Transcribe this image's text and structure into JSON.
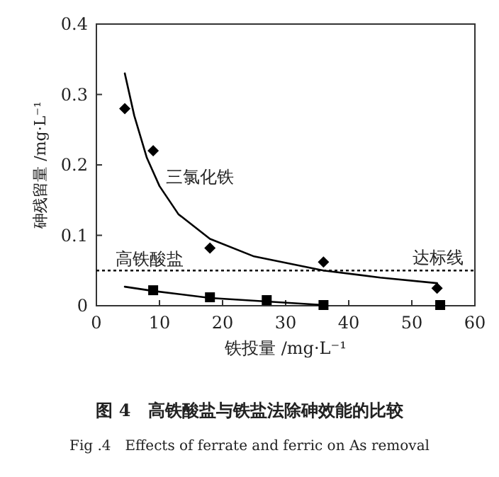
{
  "chart_data": {
    "type": "scatter",
    "title": "图 4　高铁酸盐与铁盐法除砷效能的比较",
    "subtitle": "Fig .4　Effects of ferrate and ferric on As removal",
    "xlabel": "铁投量 /mg·L⁻¹",
    "ylabel": "砷残留量 /mg·L⁻¹",
    "xlim": [
      0,
      60
    ],
    "xticks": [
      0,
      10,
      20,
      30,
      40,
      50,
      60
    ],
    "ylim": [
      0,
      0.4
    ],
    "yticks": [
      0,
      0.1,
      0.2,
      0.3,
      0.4
    ],
    "grid": false,
    "line_style": "solid",
    "series": [
      {
        "marker": "diamond",
        "color": "#000000",
        "x": [
          4.5,
          9,
          18,
          36,
          54
        ],
        "values": [
          0.28,
          0.22,
          0.082,
          0.062,
          0.025
        ]
      },
      {
        "type": "line",
        "marker": "none",
        "color": "#000000",
        "x": [
          4.5,
          6,
          8,
          10,
          13,
          18,
          25,
          36,
          45,
          54
        ],
        "values": [
          0.33,
          0.27,
          0.21,
          0.17,
          0.13,
          0.095,
          0.07,
          0.05,
          0.04,
          0.032
        ]
      },
      {
        "marker": "square",
        "color": "#000000",
        "x": [
          9,
          18,
          27,
          36,
          54.5
        ],
        "values": [
          0.022,
          0.012,
          0.008,
          0.001,
          0.001
        ]
      },
      {
        "type": "line",
        "marker": "none",
        "color": "#000000",
        "x": [
          4.5,
          9,
          18,
          27,
          36
        ],
        "values": [
          0.027,
          0.021,
          0.011,
          0.006,
          0.001
        ]
      }
    ],
    "ref_lines": [
      {
        "axis": "y",
        "value": 0.05,
        "label": "达标线",
        "line_style": "dotted",
        "color": "#000000"
      }
    ],
    "annotations": [
      {
        "text": "三氯化铁",
        "x": 11,
        "y": 0.175
      },
      {
        "text": "高铁酸盐",
        "x": 3,
        "y": 0.058
      }
    ]
  }
}
